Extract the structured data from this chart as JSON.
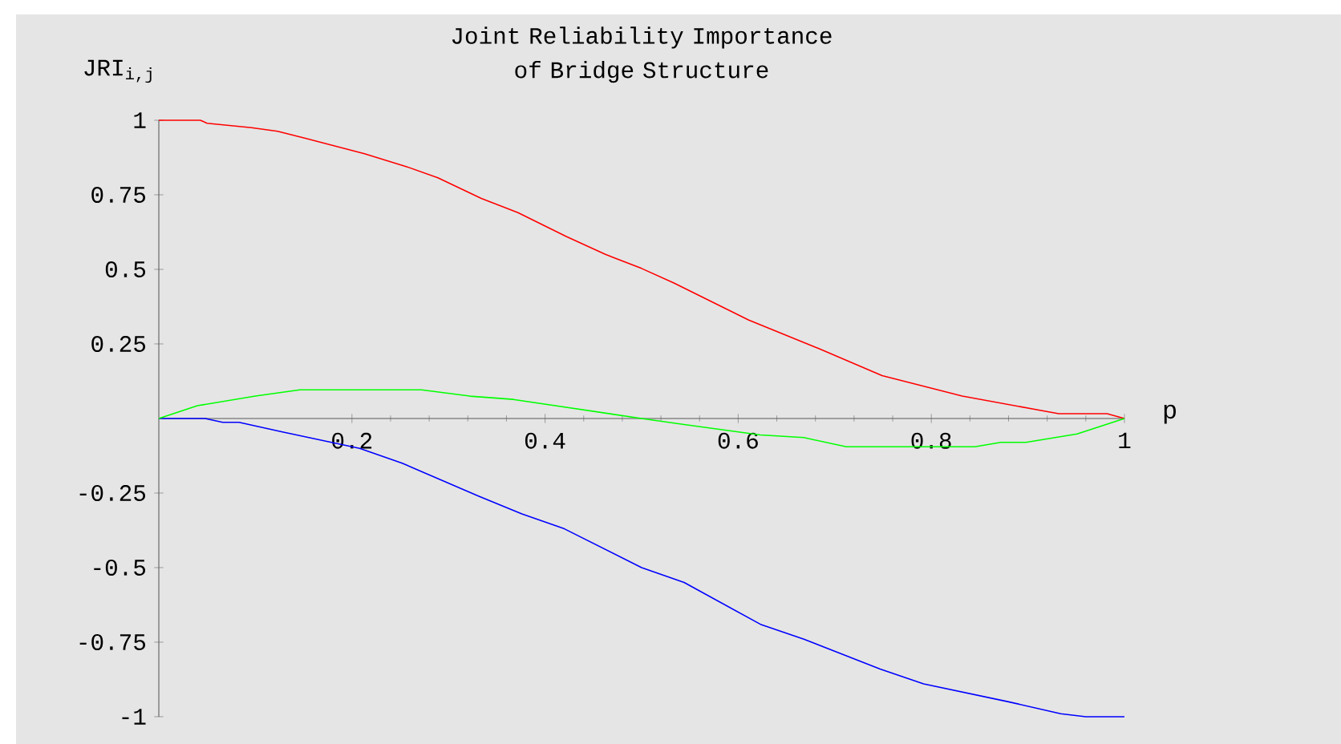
{
  "chart_data": {
    "type": "line",
    "title": "Joint Reliability Importance of Bridge Structure",
    "xlabel": "p",
    "ylabel": "JRI$_{i,j}$",
    "xlim": [
      0,
      1
    ],
    "ylim": [
      -1,
      1
    ],
    "xticks": [
      0.2,
      0.4,
      0.6,
      0.8,
      1
    ],
    "yticks": [
      -1,
      -0.75,
      -0.5,
      -0.25,
      0.25,
      0.5,
      0.75,
      1
    ],
    "grid": false,
    "series": [
      {
        "color": "#0000ff",
        "x": [
          0,
          0.048,
          0.066,
          0.083,
          0.128,
          0.208,
          0.252,
          0.331,
          0.376,
          0.42,
          0.5,
          0.544,
          0.623,
          0.668,
          0.747,
          0.792,
          0.88,
          0.934,
          0.96,
          1
        ],
        "values": [
          0,
          0,
          -0.013,
          -0.013,
          -0.045,
          -0.1,
          -0.15,
          -0.26,
          -0.32,
          -0.37,
          -0.5,
          -0.55,
          -0.69,
          -0.74,
          -0.84,
          -0.89,
          -0.95,
          -0.99,
          -1,
          -1
        ]
      },
      {
        "color": "#ff0000",
        "x": [
          0,
          0.043,
          0.05,
          0.096,
          0.123,
          0.151,
          0.213,
          0.256,
          0.289,
          0.334,
          0.372,
          0.422,
          0.462,
          0.5,
          0.533,
          0.611,
          0.683,
          0.749,
          0.832,
          0.932,
          0.982,
          1
        ],
        "values": [
          1,
          1,
          0.99,
          0.975,
          0.963,
          0.94,
          0.888,
          0.845,
          0.807,
          0.738,
          0.69,
          0.61,
          0.551,
          0.503,
          0.455,
          0.33,
          0.235,
          0.144,
          0.075,
          0.016,
          0.016,
          0
        ]
      },
      {
        "color": "#00ff00",
        "x": [
          0,
          0.04,
          0.1,
          0.146,
          0.272,
          0.322,
          0.367,
          0.5,
          0.544,
          0.623,
          0.668,
          0.712,
          0.845,
          0.872,
          0.898,
          0.951,
          1
        ],
        "values": [
          0,
          0.043,
          0.075,
          0.096,
          0.096,
          0.075,
          0.064,
          0,
          -0.02,
          -0.055,
          -0.064,
          -0.095,
          -0.095,
          -0.08,
          -0.08,
          -0.052,
          0
        ]
      }
    ]
  }
}
